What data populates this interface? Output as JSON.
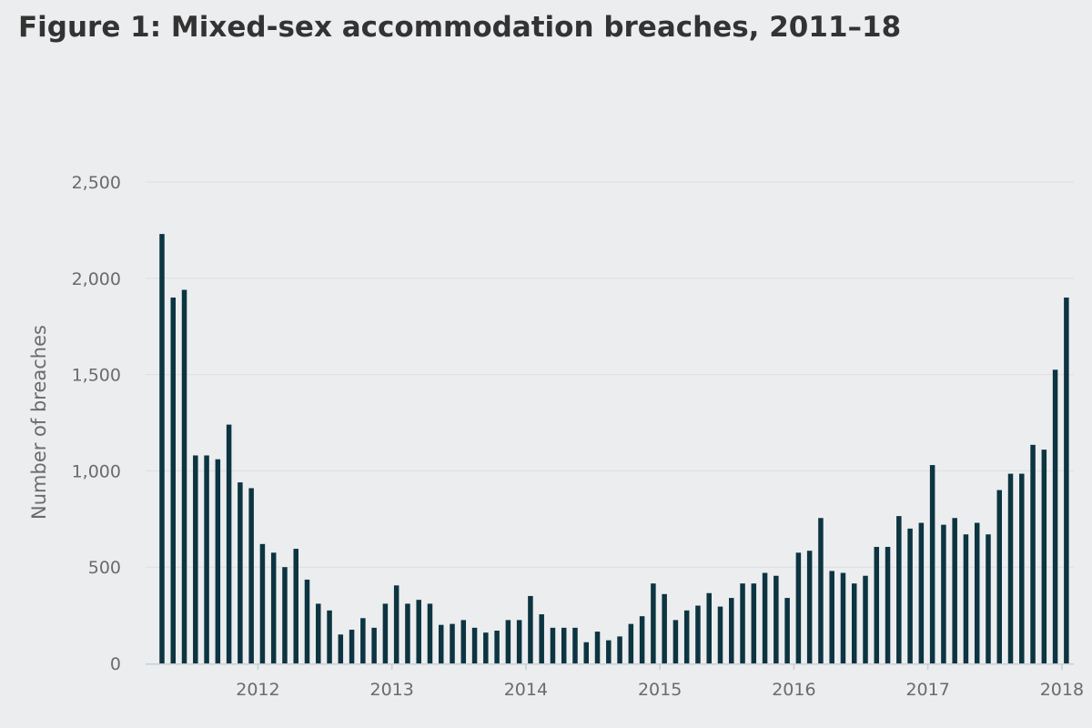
{
  "chart_data": {
    "type": "bar",
    "title": "Figure 1: Mixed-sex accommodation breaches, 2011–18",
    "xlabel": "",
    "ylabel": "Number of breaches",
    "x_start": "2011-04",
    "x_end": "2018-01",
    "x_tick_labels": [
      "2012",
      "2013",
      "2014",
      "2015",
      "2016",
      "2017",
      "2018"
    ],
    "y_tick_labels": [
      "0",
      "500",
      "1,000",
      "1,500",
      "2,000",
      "2,500"
    ],
    "ylim": [
      0,
      2500
    ],
    "grid": true,
    "legend": "none",
    "bar_color": "#0c3441",
    "categories": [
      "2011-04",
      "2011-05",
      "2011-06",
      "2011-07",
      "2011-08",
      "2011-09",
      "2011-10",
      "2011-11",
      "2011-12",
      "2012-01",
      "2012-02",
      "2012-03",
      "2012-04",
      "2012-05",
      "2012-06",
      "2012-07",
      "2012-08",
      "2012-09",
      "2012-10",
      "2012-11",
      "2012-12",
      "2013-01",
      "2013-02",
      "2013-03",
      "2013-04",
      "2013-05",
      "2013-06",
      "2013-07",
      "2013-08",
      "2013-09",
      "2013-10",
      "2013-11",
      "2013-12",
      "2014-01",
      "2014-02",
      "2014-03",
      "2014-04",
      "2014-05",
      "2014-06",
      "2014-07",
      "2014-08",
      "2014-09",
      "2014-10",
      "2014-11",
      "2014-12",
      "2015-01",
      "2015-02",
      "2015-03",
      "2015-04",
      "2015-05",
      "2015-06",
      "2015-07",
      "2015-08",
      "2015-09",
      "2015-10",
      "2015-11",
      "2015-12",
      "2016-01",
      "2016-02",
      "2016-03",
      "2016-04",
      "2016-05",
      "2016-06",
      "2016-07",
      "2016-08",
      "2016-09",
      "2016-10",
      "2016-11",
      "2016-12",
      "2017-01",
      "2017-02",
      "2017-03",
      "2017-04",
      "2017-05",
      "2017-06",
      "2017-07",
      "2017-08",
      "2017-09",
      "2017-10",
      "2017-11",
      "2017-12",
      "2018-01"
    ],
    "values": [
      2230,
      1900,
      1940,
      1080,
      1080,
      1060,
      1240,
      940,
      910,
      620,
      575,
      500,
      595,
      435,
      310,
      275,
      150,
      175,
      235,
      185,
      310,
      405,
      310,
      330,
      310,
      200,
      205,
      225,
      185,
      160,
      170,
      225,
      225,
      350,
      255,
      185,
      185,
      185,
      110,
      165,
      120,
      140,
      205,
      245,
      415,
      360,
      225,
      275,
      300,
      365,
      295,
      340,
      415,
      415,
      470,
      455,
      340,
      575,
      585,
      755,
      480,
      470,
      415,
      455,
      605,
      605,
      765,
      700,
      730,
      1030,
      720,
      755,
      670,
      730,
      670,
      900,
      985,
      985,
      1135,
      1110,
      1525,
      1900
    ]
  }
}
